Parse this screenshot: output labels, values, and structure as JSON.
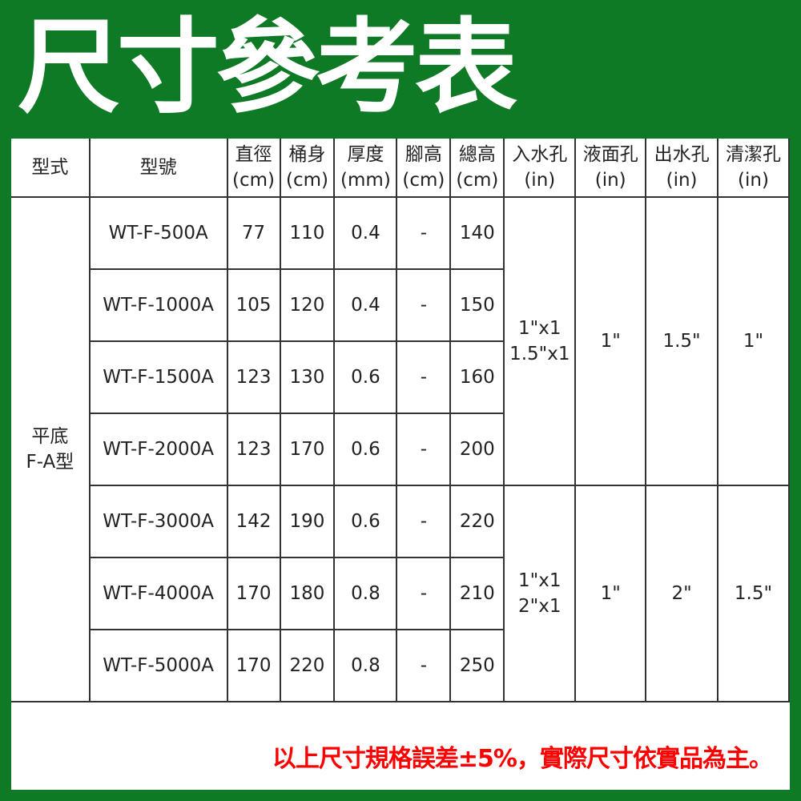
{
  "title": "尺寸參考表",
  "colors": {
    "background": "#0f7a25",
    "note": "#ff0000"
  },
  "table": {
    "headers": [
      [
        "型式"
      ],
      [
        "型號"
      ],
      [
        "直徑",
        "(cm)"
      ],
      [
        "桶身",
        "(cm)"
      ],
      [
        "厚度",
        "(mm)"
      ],
      [
        "腳高",
        "(cm)"
      ],
      [
        "總高",
        "(cm)"
      ],
      [
        "入水孔",
        "(in)"
      ],
      [
        "液面孔",
        "(in)"
      ],
      [
        "出水孔",
        "(in)"
      ],
      [
        "清潔孔",
        "(in)"
      ]
    ],
    "type": [
      "平底",
      "F-A型"
    ],
    "rows": [
      {
        "model": "WT-F-500A",
        "diameter": "77",
        "body": "110",
        "thickness": "0.4",
        "leg": "-",
        "total": "140"
      },
      {
        "model": "WT-F-1000A",
        "diameter": "105",
        "body": "120",
        "thickness": "0.4",
        "leg": "-",
        "total": "150"
      },
      {
        "model": "WT-F-1500A",
        "diameter": "123",
        "body": "130",
        "thickness": "0.6",
        "leg": "-",
        "total": "160"
      },
      {
        "model": "WT-F-2000A",
        "diameter": "123",
        "body": "170",
        "thickness": "0.6",
        "leg": "-",
        "total": "200"
      },
      {
        "model": "WT-F-3000A",
        "diameter": "142",
        "body": "190",
        "thickness": "0.6",
        "leg": "-",
        "total": "220"
      },
      {
        "model": "WT-F-4000A",
        "diameter": "170",
        "body": "180",
        "thickness": "0.8",
        "leg": "-",
        "total": "210"
      },
      {
        "model": "WT-F-5000A",
        "diameter": "170",
        "body": "220",
        "thickness": "0.8",
        "leg": "-",
        "total": "250"
      }
    ],
    "groups": [
      {
        "inlet": [
          "1\"x1",
          "1.5\"x1"
        ],
        "level": "1\"",
        "outlet": "1.5\"",
        "clean": "1\""
      },
      {
        "inlet": [
          "1\"x1",
          "2\"x1"
        ],
        "level": "1\"",
        "outlet": "2\"",
        "clean": "1.5\""
      }
    ]
  },
  "note": "以上尺寸規格誤差±5%，實際尺寸依實品為主。"
}
